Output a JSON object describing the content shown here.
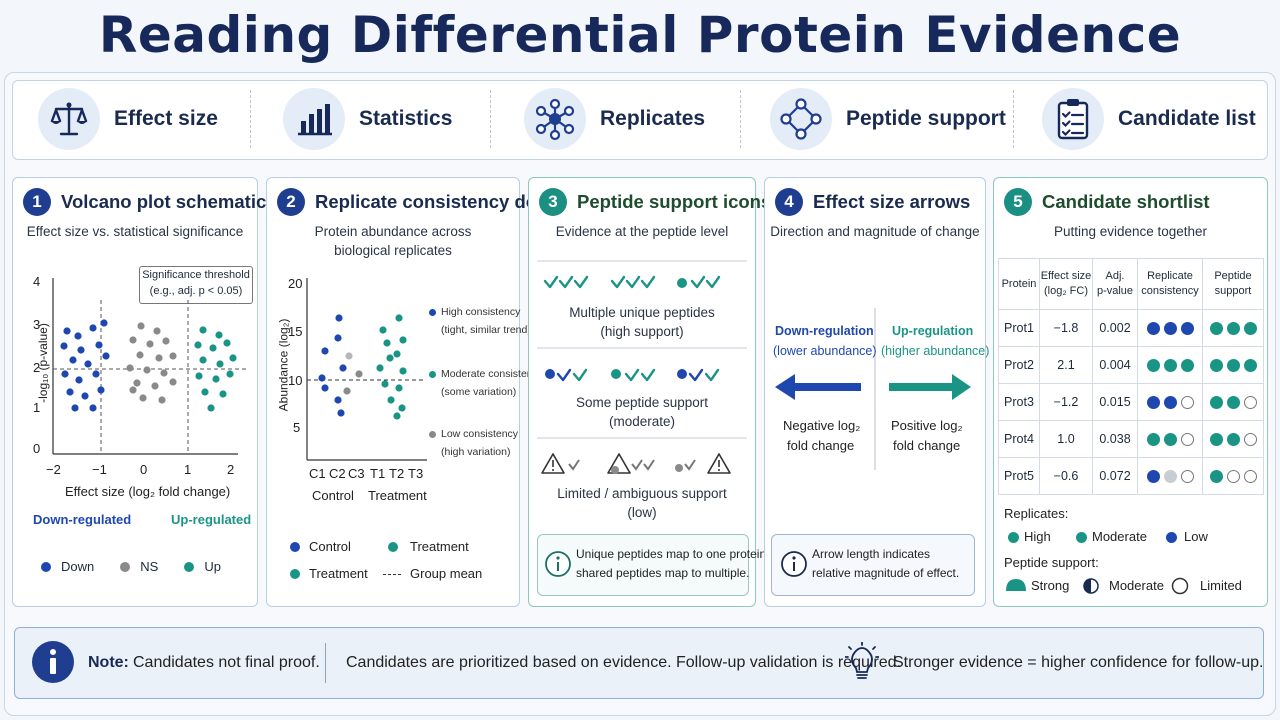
{
  "title": "Reading Differential Protein Evidence",
  "top_items": [
    {
      "label": "Effect size",
      "icon": "scales-icon"
    },
    {
      "label": "Statistics",
      "icon": "bar-chart-icon"
    },
    {
      "label": "Replicates",
      "icon": "network-icon"
    },
    {
      "label": "Peptide support",
      "icon": "diamond-network-icon"
    },
    {
      "label": "Candidate list",
      "icon": "clipboard-checklist-icon"
    }
  ],
  "colors": {
    "navy": "#17295a",
    "blue": "#1f47b0",
    "teal": "#1a9585",
    "gray": "#8a8a8a"
  },
  "panel1": {
    "number": "1",
    "title": "Volcano plot schematic",
    "subtitle": "Effect size vs. statistical significance",
    "threshold_line1": "Significance threshold",
    "threshold_line2": "(e.g., adj. p < 0.05)",
    "ylabel": "-log₁₀ (p-value)",
    "xlabel": "Effect size (log₂ fold change)",
    "yticks": [
      "4",
      "3",
      "2",
      "1",
      "0"
    ],
    "xticks": [
      "−2",
      "−1",
      "0",
      "1",
      "2"
    ],
    "down_label": "Down-regulated",
    "up_label": "Up-regulated",
    "legend": [
      "Down",
      "NS",
      "Up"
    ]
  },
  "panel2": {
    "number": "2",
    "title": "Replicate consistency dots",
    "subtitle1": "Protein abundance across",
    "subtitle2": "biological replicates",
    "ylabel": "Abundance (log₂)",
    "yticks": [
      "20",
      "15",
      "10",
      "5"
    ],
    "xticks": [
      "C1",
      "C2",
      "C3",
      "T1",
      "T2",
      "T3"
    ],
    "group_control": "Control",
    "group_treatment": "Treatment",
    "legend_right": [
      {
        "l1": "High consistency",
        "l2": "(tight, similar trend)"
      },
      {
        "l1": "Moderate consistency",
        "l2": "(some variation)"
      },
      {
        "l1": "Low consistency",
        "l2": "(high variation)"
      }
    ],
    "legend_bottom": [
      "Control",
      "Treatment",
      "Treatment",
      "Group mean"
    ]
  },
  "panel3": {
    "number": "3",
    "title": "Peptide support icons",
    "subtitle": "Evidence at the peptide level",
    "row1_l1": "Multiple unique peptides",
    "row1_l2": "(high support)",
    "row2_l1": "Some peptide support",
    "row2_l2": "(moderate)",
    "row3_l1": "Limited / ambiguous support",
    "row3_l2": "(low)",
    "info_l1": "Unique peptides map to one protein;",
    "info_l2": "shared peptides map to multiple."
  },
  "panel4": {
    "number": "4",
    "title": "Effect size arrows",
    "subtitle": "Direction and magnitude of change",
    "down_l1": "Down-regulation",
    "down_l2": "(lower abundance)",
    "up_l1": "Up-regulation",
    "up_l2": "(higher abundance)",
    "neg_l1": "Negative log₂",
    "neg_l2": "fold change",
    "pos_l1": "Positive log₂",
    "pos_l2": "fold change",
    "info_l1": "Arrow length indicates",
    "info_l2": "relative magnitude of effect."
  },
  "panel5": {
    "number": "5",
    "title": "Candidate shortlist",
    "subtitle": "Putting evidence together",
    "headers": [
      {
        "l1": "Protein",
        "l2": ""
      },
      {
        "l1": "Effect size",
        "l2": "(log₂ FC)"
      },
      {
        "l1": "Adj.",
        "l2": "p-value"
      },
      {
        "l1": "Replicate",
        "l2": "consistency"
      },
      {
        "l1": "Peptide",
        "l2": "support"
      }
    ],
    "rows": [
      {
        "protein": "Prot1",
        "fc": "−1.8",
        "p": "0.002",
        "rep": [
          "blue",
          "blue",
          "blue"
        ],
        "pep": [
          "teal",
          "teal",
          "teal"
        ]
      },
      {
        "protein": "Prot2",
        "fc": "2.1",
        "p": "0.004",
        "rep": [
          "teal",
          "teal",
          "teal"
        ],
        "pep": [
          "teal",
          "teal",
          "teal"
        ]
      },
      {
        "protein": "Prot3",
        "fc": "−1.2",
        "p": "0.015",
        "rep": [
          "blue",
          "blue",
          "empty"
        ],
        "pep": [
          "teal",
          "teal",
          "empty"
        ]
      },
      {
        "protein": "Prot4",
        "fc": "1.0",
        "p": "0.038",
        "rep": [
          "teal",
          "teal",
          "empty"
        ],
        "pep": [
          "teal",
          "teal",
          "empty"
        ]
      },
      {
        "protein": "Prot5",
        "fc": "−0.6",
        "p": "0.072",
        "rep": [
          "blue",
          "lightgray",
          "empty"
        ],
        "pep": [
          "teal",
          "empty",
          "empty"
        ]
      }
    ],
    "replicates_label": "Replicates:",
    "replicates_legend": [
      "High",
      "Moderate",
      "Low"
    ],
    "peptide_label": "Peptide support:",
    "peptide_legend": [
      "Strong",
      "Moderate",
      "Limited"
    ]
  },
  "note": {
    "bold": "Note:",
    "text1": "Candidates not final proof.",
    "text2": "Candidates are prioritized based on evidence. Follow-up validation is required.",
    "text3": "Stronger evidence = higher confidence for follow-up."
  }
}
